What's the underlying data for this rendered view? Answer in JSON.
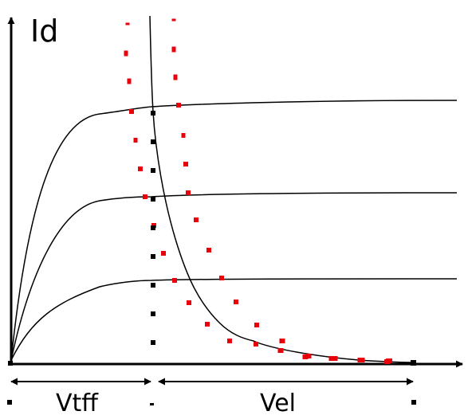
{
  "labels": {
    "y_axis": "Id",
    "left_span": "Vtff",
    "right_span": "Vel"
  },
  "colors": {
    "curve": "#000000",
    "dotted_locus": "#e8000b",
    "marker": "#000000"
  }
}
